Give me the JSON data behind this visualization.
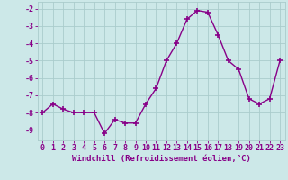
{
  "x": [
    0,
    1,
    2,
    3,
    4,
    5,
    6,
    7,
    8,
    9,
    10,
    11,
    12,
    13,
    14,
    15,
    16,
    17,
    18,
    19,
    20,
    21,
    22,
    23
  ],
  "y": [
    -8.0,
    -7.5,
    -7.8,
    -8.0,
    -8.0,
    -8.0,
    -9.2,
    -8.4,
    -8.6,
    -8.6,
    -7.5,
    -6.6,
    -5.0,
    -4.0,
    -2.6,
    -2.1,
    -2.2,
    -3.5,
    -5.0,
    -5.5,
    -7.2,
    -7.5,
    -7.2,
    -5.0
  ],
  "line_color": "#880088",
  "marker": "+",
  "marker_size": 4,
  "marker_lw": 1.2,
  "bg_color": "#cce8e8",
  "grid_color": "#aacccc",
  "axis_color": "#880088",
  "xlabel": "Windchill (Refroidissement éolien,°C)",
  "ylim": [
    -9.6,
    -1.6
  ],
  "yticks": [
    -9,
    -8,
    -7,
    -6,
    -5,
    -4,
    -3,
    -2
  ],
  "xticks": [
    0,
    1,
    2,
    3,
    4,
    5,
    6,
    7,
    8,
    9,
    10,
    11,
    12,
    13,
    14,
    15,
    16,
    17,
    18,
    19,
    20,
    21,
    22,
    23
  ],
  "xlabel_fontsize": 6.5,
  "tick_fontsize": 6.0,
  "linewidth": 1.0
}
